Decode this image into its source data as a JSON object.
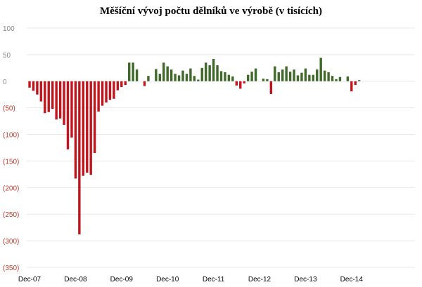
{
  "chart_data": {
    "type": "bar",
    "title": "Měšíční vývoj počtu dělníků ve výrobě (v tisících)",
    "xlabel": "",
    "ylabel": "",
    "ylim": [
      -350,
      100
    ],
    "yticks": [
      {
        "value": 100,
        "label": "100"
      },
      {
        "value": 50,
        "label": "50"
      },
      {
        "value": 0,
        "label": "0"
      },
      {
        "value": -50,
        "label": "(50)"
      },
      {
        "value": -100,
        "label": "(100)"
      },
      {
        "value": -150,
        "label": "(150)"
      },
      {
        "value": -200,
        "label": "(200)"
      },
      {
        "value": -250,
        "label": "(250)"
      },
      {
        "value": -300,
        "label": "(300)"
      },
      {
        "value": -350,
        "label": "(350)"
      }
    ],
    "xticks": [
      {
        "index": 0,
        "label": "Dec-07"
      },
      {
        "index": 12,
        "label": "Dec-08"
      },
      {
        "index": 24,
        "label": "Dec-09"
      },
      {
        "index": 36,
        "label": "Dec-10"
      },
      {
        "index": 48,
        "label": "Dec-11"
      },
      {
        "index": 60,
        "label": "Dec-12"
      },
      {
        "index": 72,
        "label": "Dec-13"
      },
      {
        "index": 84,
        "label": "Dec-14"
      }
    ],
    "grid": "horizontal",
    "colors": {
      "positive": "#3f6a2a",
      "negative": "#c0151c",
      "grid": "#e8e8e8",
      "tick_positive": "#888888",
      "tick_negative": "#c0392b"
    },
    "values": [
      -12,
      -18,
      -25,
      -38,
      -60,
      -58,
      -52,
      -72,
      -70,
      -82,
      -128,
      -106,
      -183,
      -288,
      -178,
      -172,
      -176,
      -135,
      -57,
      -46,
      -40,
      -35,
      -33,
      -17,
      -11,
      -7,
      35,
      35,
      22,
      0,
      -9,
      10,
      0,
      23,
      14,
      35,
      28,
      22,
      14,
      11,
      20,
      14,
      24,
      10,
      3,
      25,
      35,
      30,
      42,
      30,
      19,
      17,
      12,
      9,
      -8,
      -14,
      -4,
      12,
      18,
      24,
      0,
      5,
      4,
      -24,
      28,
      17,
      22,
      28,
      18,
      22,
      11,
      16,
      24,
      12,
      12,
      22,
      44,
      20,
      17,
      10,
      4,
      8,
      0,
      9,
      -19,
      -7,
      2,
      0
    ]
  }
}
